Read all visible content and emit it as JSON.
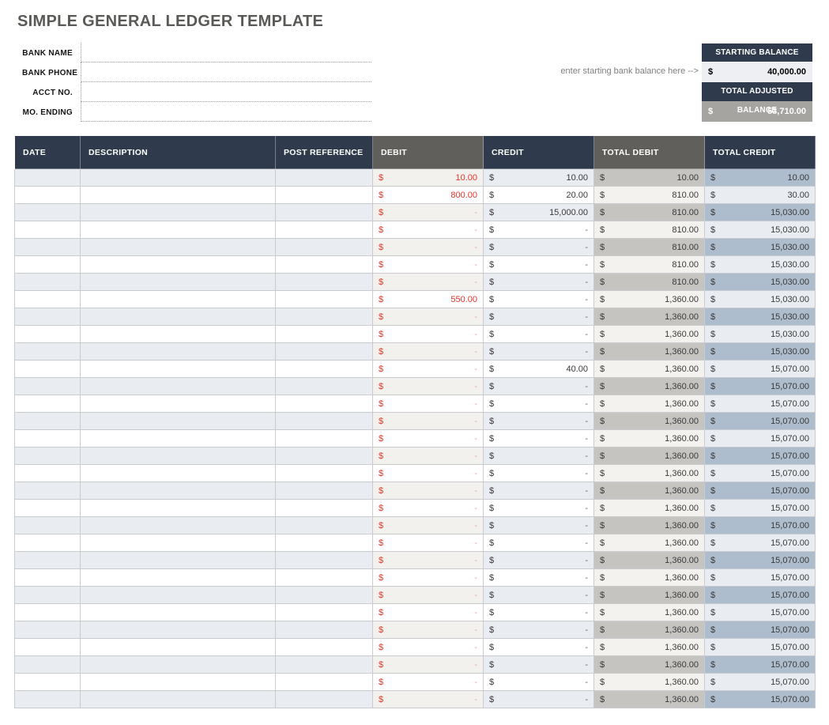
{
  "title": "SIMPLE GENERAL LEDGER TEMPLATE",
  "bank_info": {
    "fields": [
      {
        "label": "BANK NAME",
        "value": ""
      },
      {
        "label": "BANK PHONE",
        "value": ""
      },
      {
        "label": "ACCT NO.",
        "value": ""
      },
      {
        "label": "MO. ENDING",
        "value": ""
      }
    ]
  },
  "balance_panel": {
    "hint": "enter starting bank balance here -->",
    "starting_balance_label": "STARTING BALANCE",
    "starting_balance_currency": "$",
    "starting_balance_value": "40,000.00",
    "total_adjusted_label": "TOTAL ADJUSTED BALANCE",
    "total_adjusted_currency": "$",
    "total_adjusted_value": "53,710.00"
  },
  "colors": {
    "header_navy": "#2f3b4d",
    "header_gray": "#605f5b",
    "debit_red": "#e2352c",
    "total_debit_tint": "#c5c4c1",
    "total_credit_tint": "#aebdce",
    "row_tint": "#e9ecf1",
    "adjusted_balance_gray": "#a5a4a1"
  },
  "ledger": {
    "columns": [
      "DATE",
      "DESCRIPTION",
      "POST REFERENCE",
      "DEBIT",
      "CREDIT",
      "TOTAL DEBIT",
      "TOTAL CREDIT"
    ],
    "currency_symbol": "$",
    "rows": [
      {
        "date": "",
        "description": "",
        "post_reference": "",
        "debit": "10.00",
        "credit": "10.00",
        "total_debit": "10.00",
        "total_credit": "10.00"
      },
      {
        "date": "",
        "description": "",
        "post_reference": "",
        "debit": "800.00",
        "credit": "20.00",
        "total_debit": "810.00",
        "total_credit": "30.00"
      },
      {
        "date": "",
        "description": "",
        "post_reference": "",
        "debit": "-",
        "credit": "15,000.00",
        "total_debit": "810.00",
        "total_credit": "15,030.00"
      },
      {
        "date": "",
        "description": "",
        "post_reference": "",
        "debit": "-",
        "credit": "-",
        "total_debit": "810.00",
        "total_credit": "15,030.00"
      },
      {
        "date": "",
        "description": "",
        "post_reference": "",
        "debit": "-",
        "credit": "-",
        "total_debit": "810.00",
        "total_credit": "15,030.00"
      },
      {
        "date": "",
        "description": "",
        "post_reference": "",
        "debit": "-",
        "credit": "-",
        "total_debit": "810.00",
        "total_credit": "15,030.00"
      },
      {
        "date": "",
        "description": "",
        "post_reference": "",
        "debit": "-",
        "credit": "-",
        "total_debit": "810.00",
        "total_credit": "15,030.00"
      },
      {
        "date": "",
        "description": "",
        "post_reference": "",
        "debit": "550.00",
        "credit": "-",
        "total_debit": "1,360.00",
        "total_credit": "15,030.00"
      },
      {
        "date": "",
        "description": "",
        "post_reference": "",
        "debit": "-",
        "credit": "-",
        "total_debit": "1,360.00",
        "total_credit": "15,030.00"
      },
      {
        "date": "",
        "description": "",
        "post_reference": "",
        "debit": "-",
        "credit": "-",
        "total_debit": "1,360.00",
        "total_credit": "15,030.00"
      },
      {
        "date": "",
        "description": "",
        "post_reference": "",
        "debit": "-",
        "credit": "-",
        "total_debit": "1,360.00",
        "total_credit": "15,030.00"
      },
      {
        "date": "",
        "description": "",
        "post_reference": "",
        "debit": "-",
        "credit": "40.00",
        "total_debit": "1,360.00",
        "total_credit": "15,070.00"
      },
      {
        "date": "",
        "description": "",
        "post_reference": "",
        "debit": "-",
        "credit": "-",
        "total_debit": "1,360.00",
        "total_credit": "15,070.00"
      },
      {
        "date": "",
        "description": "",
        "post_reference": "",
        "debit": "-",
        "credit": "-",
        "total_debit": "1,360.00",
        "total_credit": "15,070.00"
      },
      {
        "date": "",
        "description": "",
        "post_reference": "",
        "debit": "-",
        "credit": "-",
        "total_debit": "1,360.00",
        "total_credit": "15,070.00"
      },
      {
        "date": "",
        "description": "",
        "post_reference": "",
        "debit": "-",
        "credit": "-",
        "total_debit": "1,360.00",
        "total_credit": "15,070.00"
      },
      {
        "date": "",
        "description": "",
        "post_reference": "",
        "debit": "-",
        "credit": "-",
        "total_debit": "1,360.00",
        "total_credit": "15,070.00"
      },
      {
        "date": "",
        "description": "",
        "post_reference": "",
        "debit": "-",
        "credit": "-",
        "total_debit": "1,360.00",
        "total_credit": "15,070.00"
      },
      {
        "date": "",
        "description": "",
        "post_reference": "",
        "debit": "-",
        "credit": "-",
        "total_debit": "1,360.00",
        "total_credit": "15,070.00"
      },
      {
        "date": "",
        "description": "",
        "post_reference": "",
        "debit": "-",
        "credit": "-",
        "total_debit": "1,360.00",
        "total_credit": "15,070.00"
      },
      {
        "date": "",
        "description": "",
        "post_reference": "",
        "debit": "-",
        "credit": "-",
        "total_debit": "1,360.00",
        "total_credit": "15,070.00"
      },
      {
        "date": "",
        "description": "",
        "post_reference": "",
        "debit": "-",
        "credit": "-",
        "total_debit": "1,360.00",
        "total_credit": "15,070.00"
      },
      {
        "date": "",
        "description": "",
        "post_reference": "",
        "debit": "-",
        "credit": "-",
        "total_debit": "1,360.00",
        "total_credit": "15,070.00"
      },
      {
        "date": "",
        "description": "",
        "post_reference": "",
        "debit": "-",
        "credit": "-",
        "total_debit": "1,360.00",
        "total_credit": "15,070.00"
      },
      {
        "date": "",
        "description": "",
        "post_reference": "",
        "debit": "-",
        "credit": "-",
        "total_debit": "1,360.00",
        "total_credit": "15,070.00"
      },
      {
        "date": "",
        "description": "",
        "post_reference": "",
        "debit": "-",
        "credit": "-",
        "total_debit": "1,360.00",
        "total_credit": "15,070.00"
      },
      {
        "date": "",
        "description": "",
        "post_reference": "",
        "debit": "-",
        "credit": "-",
        "total_debit": "1,360.00",
        "total_credit": "15,070.00"
      },
      {
        "date": "",
        "description": "",
        "post_reference": "",
        "debit": "-",
        "credit": "-",
        "total_debit": "1,360.00",
        "total_credit": "15,070.00"
      },
      {
        "date": "",
        "description": "",
        "post_reference": "",
        "debit": "-",
        "credit": "-",
        "total_debit": "1,360.00",
        "total_credit": "15,070.00"
      },
      {
        "date": "",
        "description": "",
        "post_reference": "",
        "debit": "-",
        "credit": "-",
        "total_debit": "1,360.00",
        "total_credit": "15,070.00"
      },
      {
        "date": "",
        "description": "",
        "post_reference": "",
        "debit": "-",
        "credit": "-",
        "total_debit": "1,360.00",
        "total_credit": "15,070.00"
      }
    ]
  }
}
